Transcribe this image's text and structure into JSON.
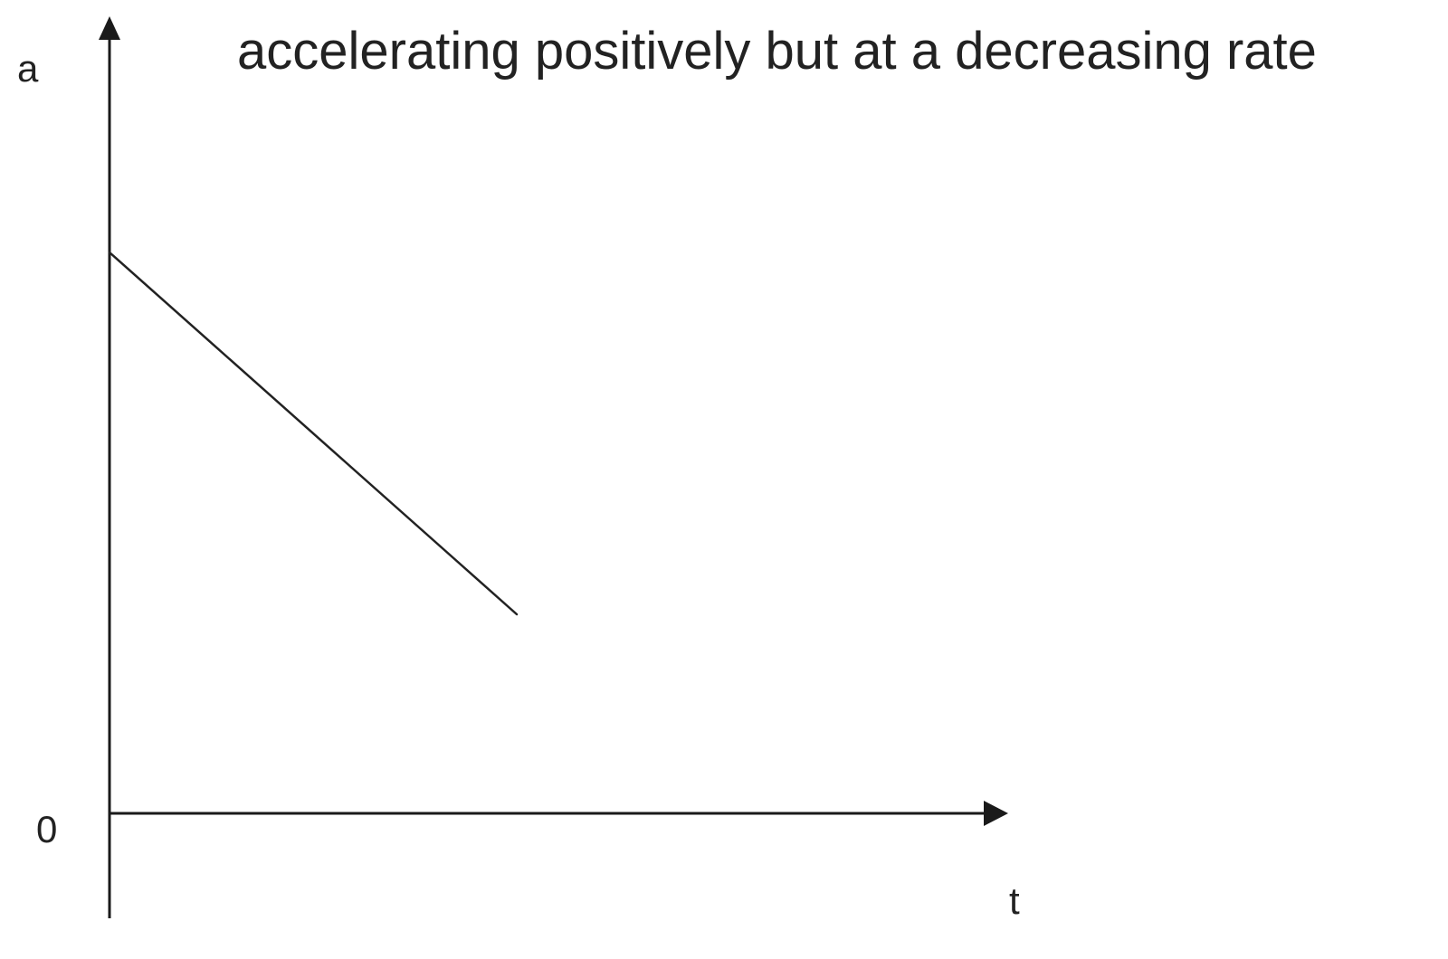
{
  "chart_data": {
    "type": "line",
    "title": "accelerating positively but at a decreasing rate",
    "xlabel": "t",
    "ylabel": "a",
    "y_tick_labels": [
      "0"
    ],
    "series": [
      {
        "x": [
          0,
          0.45
        ],
        "y": [
          0.62,
          0.22
        ]
      }
    ],
    "xlim": [
      0,
      1
    ],
    "ylim": [
      0,
      0.88
    ],
    "grid": false,
    "legend": "none",
    "axis_color": "#1a1a1a",
    "line_color": "#222222"
  }
}
